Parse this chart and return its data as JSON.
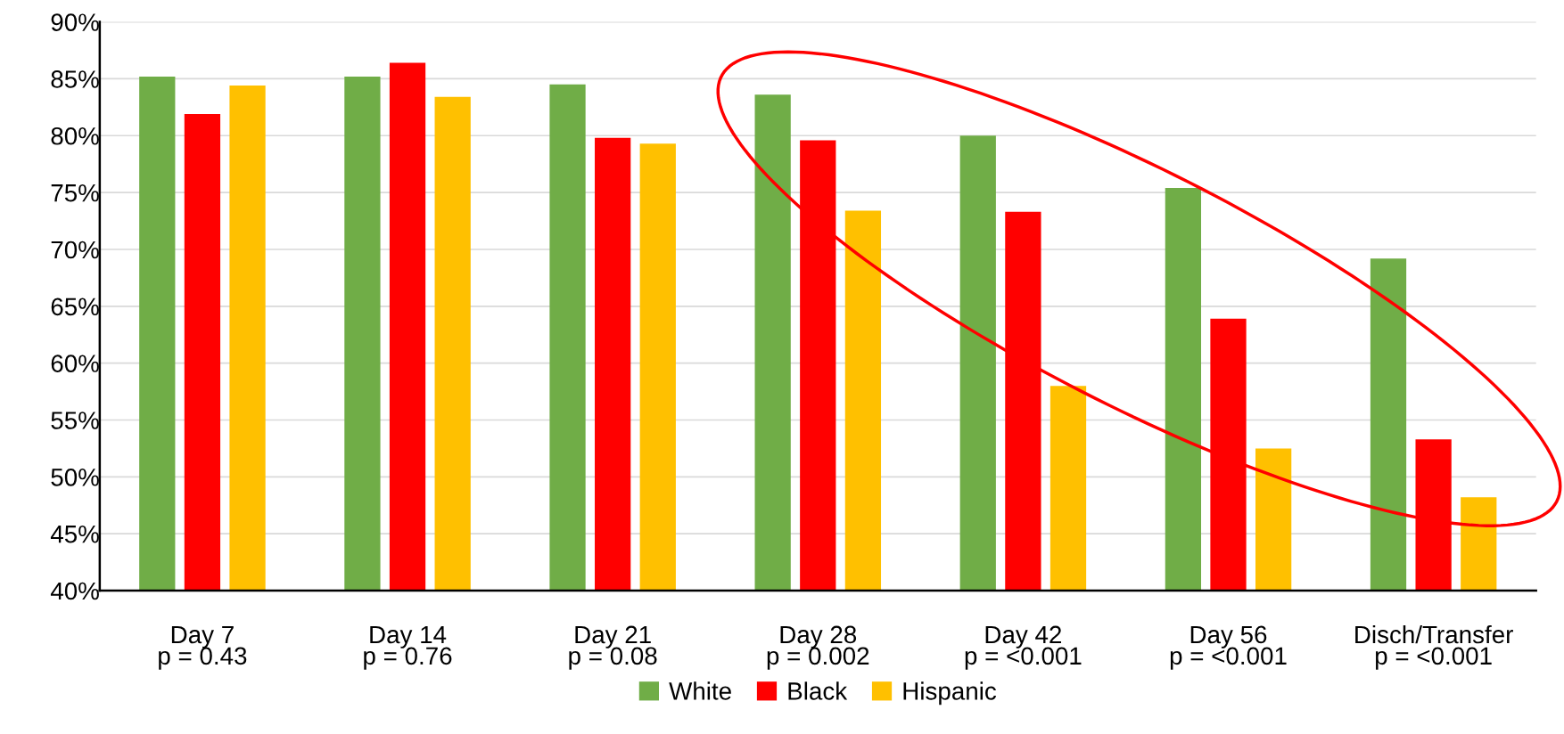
{
  "chart_data": {
    "type": "bar",
    "categories": [
      "Day 7\np = 0.43",
      "Day 14\np = 0.76",
      "Day 21\np = 0.08",
      "Day 28\np = 0.002",
      "Day 42\np = <0.001",
      "Day 56\np = <0.001",
      "Disch/Transfer\np = <0.001"
    ],
    "series": [
      {
        "name": "White",
        "color": "#70ad47",
        "values": [
          85.2,
          85.2,
          84.5,
          83.6,
          80.0,
          75.4,
          69.2
        ]
      },
      {
        "name": "Black",
        "color": "#ff0000",
        "values": [
          81.9,
          86.4,
          79.8,
          79.6,
          73.3,
          63.9,
          53.3
        ]
      },
      {
        "name": "Hispanic",
        "color": "#ffc000",
        "values": [
          84.4,
          83.4,
          79.3,
          73.4,
          58.0,
          52.5,
          48.2
        ]
      }
    ],
    "ylim": [
      40,
      90
    ],
    "yticks": [
      {
        "value": 40,
        "label": "40%"
      },
      {
        "value": 45,
        "label": "45%"
      },
      {
        "value": 50,
        "label": "50%"
      },
      {
        "value": 55,
        "label": "55%"
      },
      {
        "value": 60,
        "label": "60%"
      },
      {
        "value": 65,
        "label": "65%"
      },
      {
        "value": 70,
        "label": "70%"
      },
      {
        "value": 75,
        "label": "75%"
      },
      {
        "value": 80,
        "label": "80%"
      },
      {
        "value": 85,
        "label": "85%"
      },
      {
        "value": 90,
        "label": "90%"
      }
    ],
    "grid": "y",
    "legend": "bottom"
  }
}
